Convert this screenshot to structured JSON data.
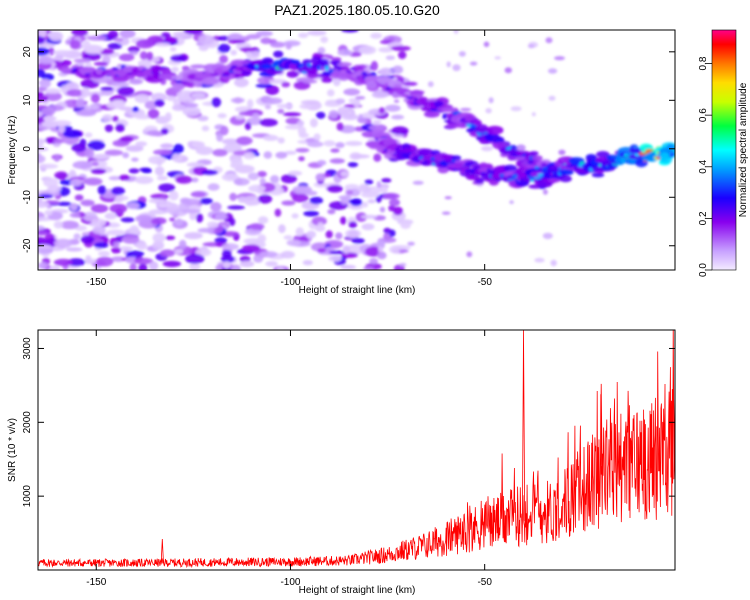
{
  "title": "PAZ1.2025.180.05.10.G20",
  "chart_data": [
    {
      "type": "heatmap",
      "xlabel": "Height of straight line (km)",
      "ylabel": "Frequency (Hz)",
      "xlim": [
        -165,
        -1
      ],
      "ylim": [
        -25,
        24.5
      ],
      "xticks": [
        -150,
        -100,
        -50
      ],
      "yticks": [
        -20,
        -10,
        0,
        10,
        20
      ],
      "colorbar": {
        "label": "Normalized spectral amplitude",
        "range": [
          0,
          0.93
        ],
        "ticks": [
          0.0,
          0.2,
          0.4,
          0.6,
          0.8
        ],
        "colors": [
          "#f4ecff",
          "#8800ee",
          "#1a00ff",
          "#00ffff",
          "#00ff00",
          "#ffff00",
          "#ff8800",
          "#ff0000",
          "#ff0088"
        ]
      },
      "ridges": [
        {
          "description": "upper tone",
          "points": [
            [
              -157,
              16
            ],
            [
              -146,
              16
            ],
            [
              -137,
              16
            ],
            [
              -126,
              14
            ],
            [
              -118,
              16
            ],
            [
              -110,
              17
            ],
            [
              -103,
              17
            ],
            [
              -93,
              17
            ],
            [
              -85,
              16
            ],
            [
              -78,
              14
            ],
            [
              -70,
              11
            ],
            [
              -62,
              8
            ],
            [
              -55,
              5
            ],
            [
              -47,
              2
            ],
            [
              -40,
              -2
            ],
            [
              -34,
              -4
            ]
          ],
          "amplitudes": [
            0.28,
            0.3,
            0.3,
            0.25,
            0.28,
            0.42,
            0.5,
            0.45,
            0.3,
            0.22,
            0.25,
            0.35,
            0.4,
            0.45,
            0.4,
            0.35
          ]
        },
        {
          "description": "lower tone",
          "points": [
            [
              -78,
              3
            ],
            [
              -74,
              0
            ],
            [
              -70,
              -1
            ],
            [
              -65,
              -2
            ],
            [
              -58,
              -3
            ],
            [
              -52,
              -5
            ],
            [
              -46,
              -5
            ],
            [
              -40,
              -6
            ],
            [
              -33,
              -6
            ],
            [
              -28,
              -3
            ],
            [
              -22,
              -4
            ],
            [
              -15,
              -2
            ],
            [
              -10,
              -1
            ],
            [
              -5,
              -1
            ],
            [
              -2,
              -1
            ]
          ],
          "amplitudes": [
            0.25,
            0.3,
            0.38,
            0.4,
            0.42,
            0.38,
            0.36,
            0.42,
            0.48,
            0.45,
            0.5,
            0.55,
            0.7,
            0.93,
            0.75
          ]
        }
      ]
    },
    {
      "type": "line",
      "xlabel": "Height of straight line (km)",
      "ylabel": "SNR (10 * v/v)",
      "xlim": [
        -165,
        -1
      ],
      "ylim": [
        0,
        3250
      ],
      "xticks": [
        -150,
        -100,
        -50
      ],
      "yticks": [
        1000,
        2000,
        3000
      ],
      "color": "#ff0000",
      "envelope": {
        "x": [
          -165,
          -140,
          -120,
          -100,
          -85,
          -75,
          -65,
          -55,
          -48,
          -42,
          -40,
          -38,
          -32,
          -25,
          -20,
          -15,
          -10,
          -5,
          -1
        ],
        "y": [
          120,
          120,
          130,
          140,
          160,
          260,
          420,
          650,
          800,
          900,
          3250,
          950,
          1000,
          1350,
          1600,
          1750,
          1850,
          1950,
          2050
        ]
      },
      "spikes": [
        {
          "x": -40,
          "y": 3250
        },
        {
          "x": -20,
          "y": 2520
        },
        {
          "x": -1,
          "y": 2420
        },
        {
          "x": -133,
          "y": 420
        }
      ]
    }
  ]
}
